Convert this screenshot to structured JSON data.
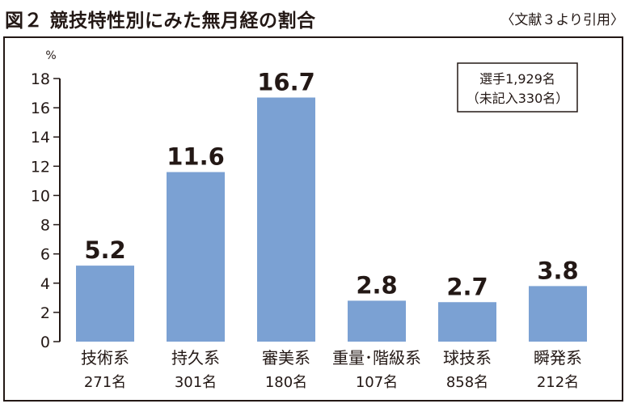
{
  "figure": {
    "title": "図２ 競技特性別にみた無月経の割合",
    "source": "〈文献３より引用〉"
  },
  "note": {
    "line1": "選手1,929名",
    "line2": "（未記入330名）"
  },
  "chart_data": {
    "type": "bar",
    "ylabel": "%",
    "xlabel": "",
    "ylim": [
      0,
      18
    ],
    "yticks": [
      0,
      2,
      4,
      6,
      8,
      10,
      12,
      14,
      16,
      18
    ],
    "grid": false,
    "categories": [
      "技術系",
      "持久系",
      "審美系",
      "重量･階級系",
      "球技系",
      "瞬発系"
    ],
    "counts": [
      "271名",
      "301名",
      "180名",
      "107名",
      "858名",
      "212名"
    ],
    "values": [
      5.2,
      11.6,
      16.7,
      2.8,
      2.7,
      3.8
    ],
    "value_labels": [
      "5.2",
      "11.6",
      "16.7",
      "2.8",
      "2.7",
      "3.8"
    ],
    "bar_color": "#7ba1d3"
  }
}
